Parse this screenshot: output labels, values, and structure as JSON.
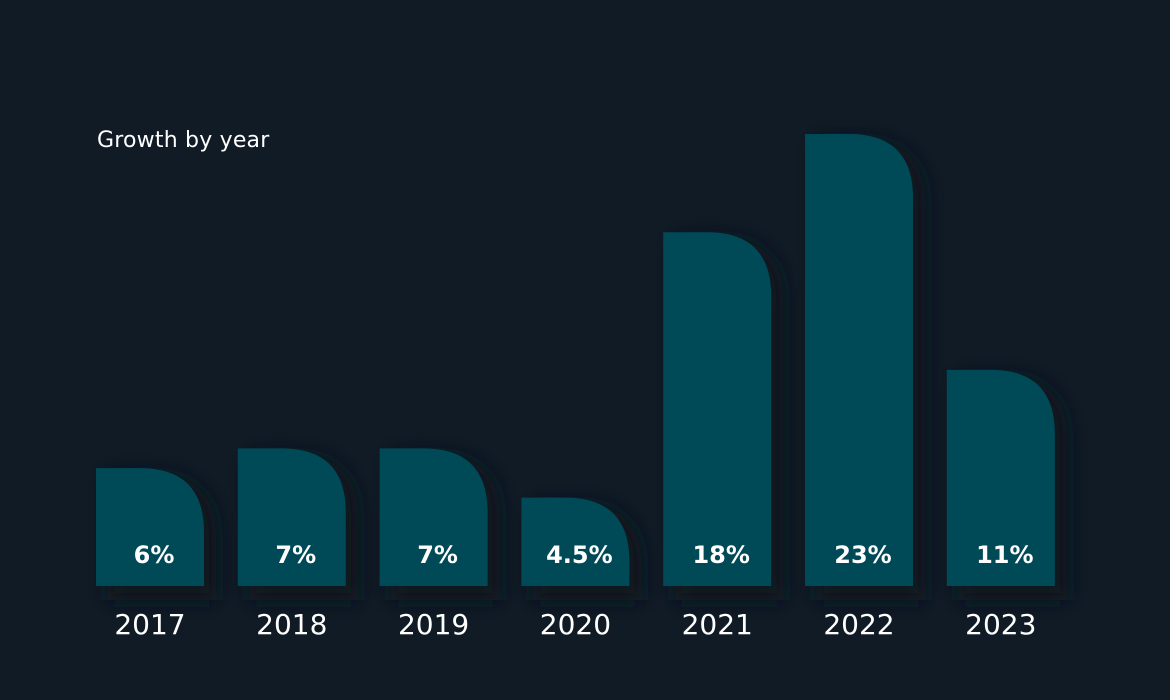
{
  "colors": {
    "background": "#101b26",
    "bar": "#004a57",
    "bar_shadow": "#0b141d",
    "text": "#ffffff"
  },
  "chart_data": {
    "type": "bar",
    "title": "Growth by year",
    "xlabel": "",
    "ylabel": "",
    "categories": [
      "2017",
      "2018",
      "2019",
      "2020",
      "2021",
      "2022",
      "2023"
    ],
    "values": [
      6,
      7,
      7,
      4.5,
      18,
      23,
      11
    ],
    "value_labels": [
      "6%",
      "7%",
      "7%",
      "4.5%",
      "18%",
      "23%",
      "11%"
    ],
    "ylim": [
      0,
      23
    ],
    "grid": false,
    "legend": "none"
  }
}
